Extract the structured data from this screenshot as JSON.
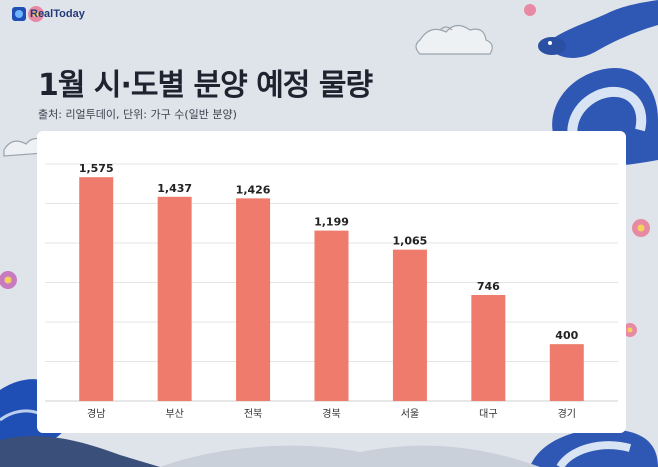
{
  "brand": {
    "logo_text": "RealToday"
  },
  "title": "1월 시·도별 분양 예정 물량",
  "source": "출처: 리얼투데이, 단위: 가구 수(일반 분양)",
  "colors": {
    "bar": "#ee7b6b",
    "grid": "#e4e4e4",
    "background": "#dfe4ea",
    "card": "#ffffff"
  },
  "chart_data": {
    "type": "bar",
    "categories": [
      "경남",
      "부산",
      "전북",
      "경북",
      "서울",
      "대구",
      "경기"
    ],
    "values": [
      1575,
      1437,
      1426,
      1199,
      1065,
      746,
      400
    ],
    "value_labels": [
      "1,575",
      "1,437",
      "1,426",
      "1,199",
      "1,065",
      "746",
      "400"
    ],
    "title": "1월 시·도별 분양 예정 물량",
    "xlabel": "",
    "ylabel": "",
    "ylim": [
      0,
      1900
    ],
    "grid": true,
    "legend": "none"
  }
}
